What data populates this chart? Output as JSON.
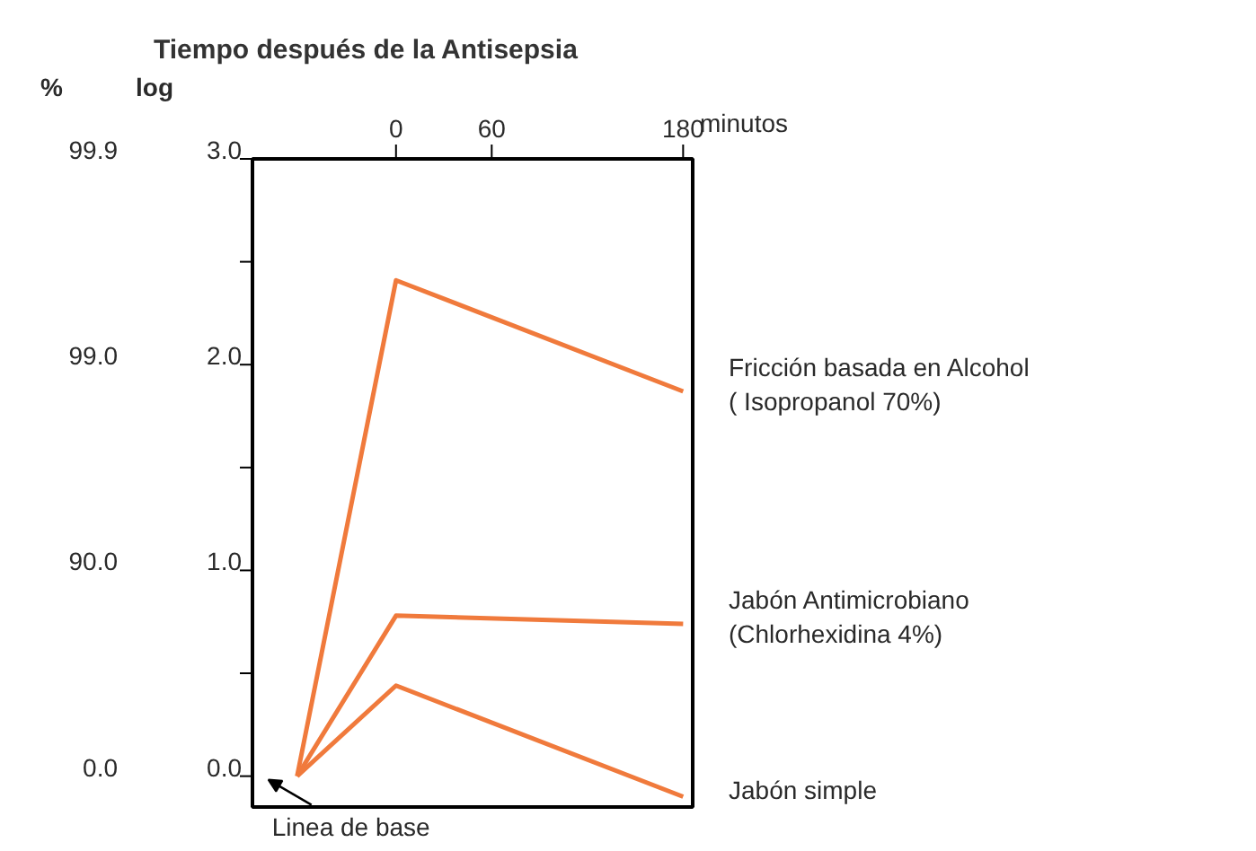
{
  "chart_data": {
    "type": "line",
    "title": "Tiempo después de la Antisepsia",
    "xlabel": "minutos",
    "ylabel": "log",
    "x": [
      -62,
      0,
      180
    ],
    "xlim": [
      -90,
      186
    ],
    "xticks": [
      0,
      60,
      180
    ],
    "ylim": [
      -0.15,
      3.0
    ],
    "yticks": [
      {
        "value": 0,
        "label": "0.0"
      },
      {
        "value": 0.5,
        "label": null
      },
      {
        "value": 1,
        "label": "1.0"
      },
      {
        "value": 1.5,
        "label": null
      },
      {
        "value": 2,
        "label": "2.0"
      },
      {
        "value": 2.5,
        "label": null
      },
      {
        "value": 3,
        "label": "3.0"
      }
    ],
    "series": [
      {
        "name": "Fricción basada en Alcohol\n( Isopropanol 70%)",
        "color": "#f07a3c",
        "values": [
          0,
          2.41,
          1.87
        ]
      },
      {
        "name": "Jabón Antimicrobiano\n(Chlorhexidina 4%)",
        "color": "#f07a3c",
        "values": [
          0,
          0.78,
          0.74
        ]
      },
      {
        "name": "Jabón simple",
        "color": "#f07a3c",
        "values": [
          0,
          0.44,
          -0.1
        ]
      }
    ],
    "annotations": [
      {
        "text": "Linea de base",
        "x": -62,
        "y": 0
      },
      "%",
      "0.0",
      "90.0",
      "99.0",
      "99.9"
    ],
    "grid": false,
    "marker": "none",
    "line_style": "solid"
  }
}
